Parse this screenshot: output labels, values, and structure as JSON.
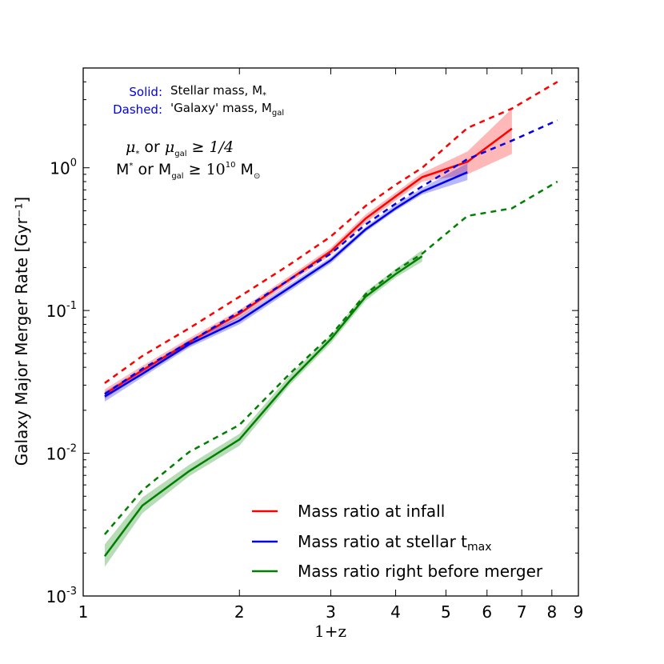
{
  "chart_data": {
    "type": "line",
    "xlabel": "1+z",
    "ylabel": "Galaxy Major Merger Rate [Gyr⁻¹]",
    "xscale": "log",
    "yscale": "log",
    "xlim": [
      1,
      9
    ],
    "ylim": [
      0.001,
      5
    ],
    "x_ticks": [
      1,
      2,
      3,
      4,
      5,
      6,
      7,
      8,
      9
    ],
    "x_tick_labels": [
      "1",
      "2",
      "3",
      "4",
      "5",
      "6",
      "7",
      "8",
      "9"
    ],
    "y_ticks": [
      0.001,
      0.01,
      0.1,
      1
    ],
    "y_tick_labels": [
      {
        "base": "10",
        "exp": "-3"
      },
      {
        "base": "10",
        "exp": "-2"
      },
      {
        "base": "10",
        "exp": "-1"
      },
      {
        "base": "10",
        "exp": "0"
      }
    ],
    "grid": false,
    "legend_position": "lower-right",
    "annotations": {
      "solid_key": "Solid:",
      "solid_desc": "Stellar mass, M",
      "solid_sub": "*",
      "dashed_key": "Dashed:",
      "dashed_desc": "'Galaxy' mass, M",
      "dashed_sub": "gal",
      "cond1_a": "μ",
      "cond1_a_sub": "*",
      "cond1_b": " or ",
      "cond1_c": "μ",
      "cond1_c_sub": "gal",
      "cond1_d": " ≥ ",
      "cond1_e": "1/4",
      "cond2_a": "M",
      "cond2_a_sub": "*",
      "cond2_b": " or M",
      "cond2_b_sub": "gal",
      "cond2_c": " ≥ ",
      "cond2_d": "10",
      "cond2_d_sup": "10",
      "cond2_e": " M",
      "cond2_e_sub": "⊙"
    },
    "series": [
      {
        "name": "Mass ratio at infall",
        "legend_sub": "",
        "color": "#ff0000",
        "solid": {
          "x": [
            1.1,
            1.3,
            1.6,
            2.0,
            2.5,
            3.0,
            3.5,
            4.0,
            4.5,
            5.5,
            6.7
          ],
          "y": [
            0.026,
            0.038,
            0.06,
            0.095,
            0.165,
            0.26,
            0.44,
            0.63,
            0.86,
            1.1,
            1.88
          ],
          "lo": [
            0.024,
            0.036,
            0.056,
            0.089,
            0.156,
            0.245,
            0.41,
            0.59,
            0.8,
            0.9,
            1.25
          ],
          "hi": [
            0.028,
            0.041,
            0.064,
            0.101,
            0.175,
            0.275,
            0.47,
            0.67,
            0.92,
            1.3,
            2.6
          ]
        },
        "dashed": {
          "x": [
            1.1,
            1.3,
            1.6,
            2.0,
            2.5,
            3.0,
            3.5,
            4.0,
            4.5,
            5.5,
            6.7,
            8.2
          ],
          "y": [
            0.031,
            0.048,
            0.075,
            0.125,
            0.21,
            0.33,
            0.54,
            0.76,
            1.0,
            1.9,
            2.6,
            4.0
          ]
        }
      },
      {
        "name": "Mass ratio at stellar t",
        "legend_sub": "max",
        "color": "#0000ee",
        "solid": {
          "x": [
            1.1,
            1.3,
            1.6,
            2.0,
            2.5,
            3.0,
            3.5,
            4.0,
            4.5,
            5.5
          ],
          "y": [
            0.025,
            0.036,
            0.058,
            0.085,
            0.145,
            0.225,
            0.37,
            0.52,
            0.68,
            0.93
          ],
          "lo": [
            0.023,
            0.034,
            0.055,
            0.08,
            0.137,
            0.214,
            0.355,
            0.5,
            0.65,
            0.82
          ],
          "hi": [
            0.027,
            0.039,
            0.062,
            0.09,
            0.153,
            0.236,
            0.385,
            0.55,
            0.72,
            1.08
          ]
        },
        "dashed": {
          "x": [
            1.1,
            1.3,
            1.6,
            2.0,
            2.5,
            3.0,
            3.5,
            4.0,
            4.5,
            5.5,
            6.7,
            8.2
          ],
          "y": [
            0.026,
            0.039,
            0.06,
            0.098,
            0.165,
            0.25,
            0.4,
            0.56,
            0.74,
            1.15,
            1.55,
            2.15
          ]
        }
      },
      {
        "name": "Mass ratio right before merger",
        "legend_sub": "",
        "color": "#008000",
        "solid": {
          "x": [
            1.1,
            1.3,
            1.6,
            2.0,
            2.5,
            3.0,
            3.5,
            4.0,
            4.5
          ],
          "y": [
            0.0019,
            0.0043,
            0.0075,
            0.0125,
            0.032,
            0.063,
            0.125,
            0.18,
            0.24
          ],
          "lo": [
            0.0016,
            0.0038,
            0.0069,
            0.0113,
            0.03,
            0.059,
            0.117,
            0.17,
            0.22
          ],
          "hi": [
            0.0023,
            0.0049,
            0.0083,
            0.0137,
            0.035,
            0.067,
            0.135,
            0.195,
            0.265
          ]
        },
        "dashed": {
          "x": [
            1.1,
            1.3,
            1.6,
            2.0,
            2.5,
            3.0,
            3.5,
            4.0,
            4.5,
            5.5,
            6.7,
            8.2
          ],
          "y": [
            0.0027,
            0.0055,
            0.0102,
            0.0158,
            0.036,
            0.067,
            0.13,
            0.19,
            0.25,
            0.46,
            0.52,
            0.8
          ]
        }
      }
    ]
  }
}
